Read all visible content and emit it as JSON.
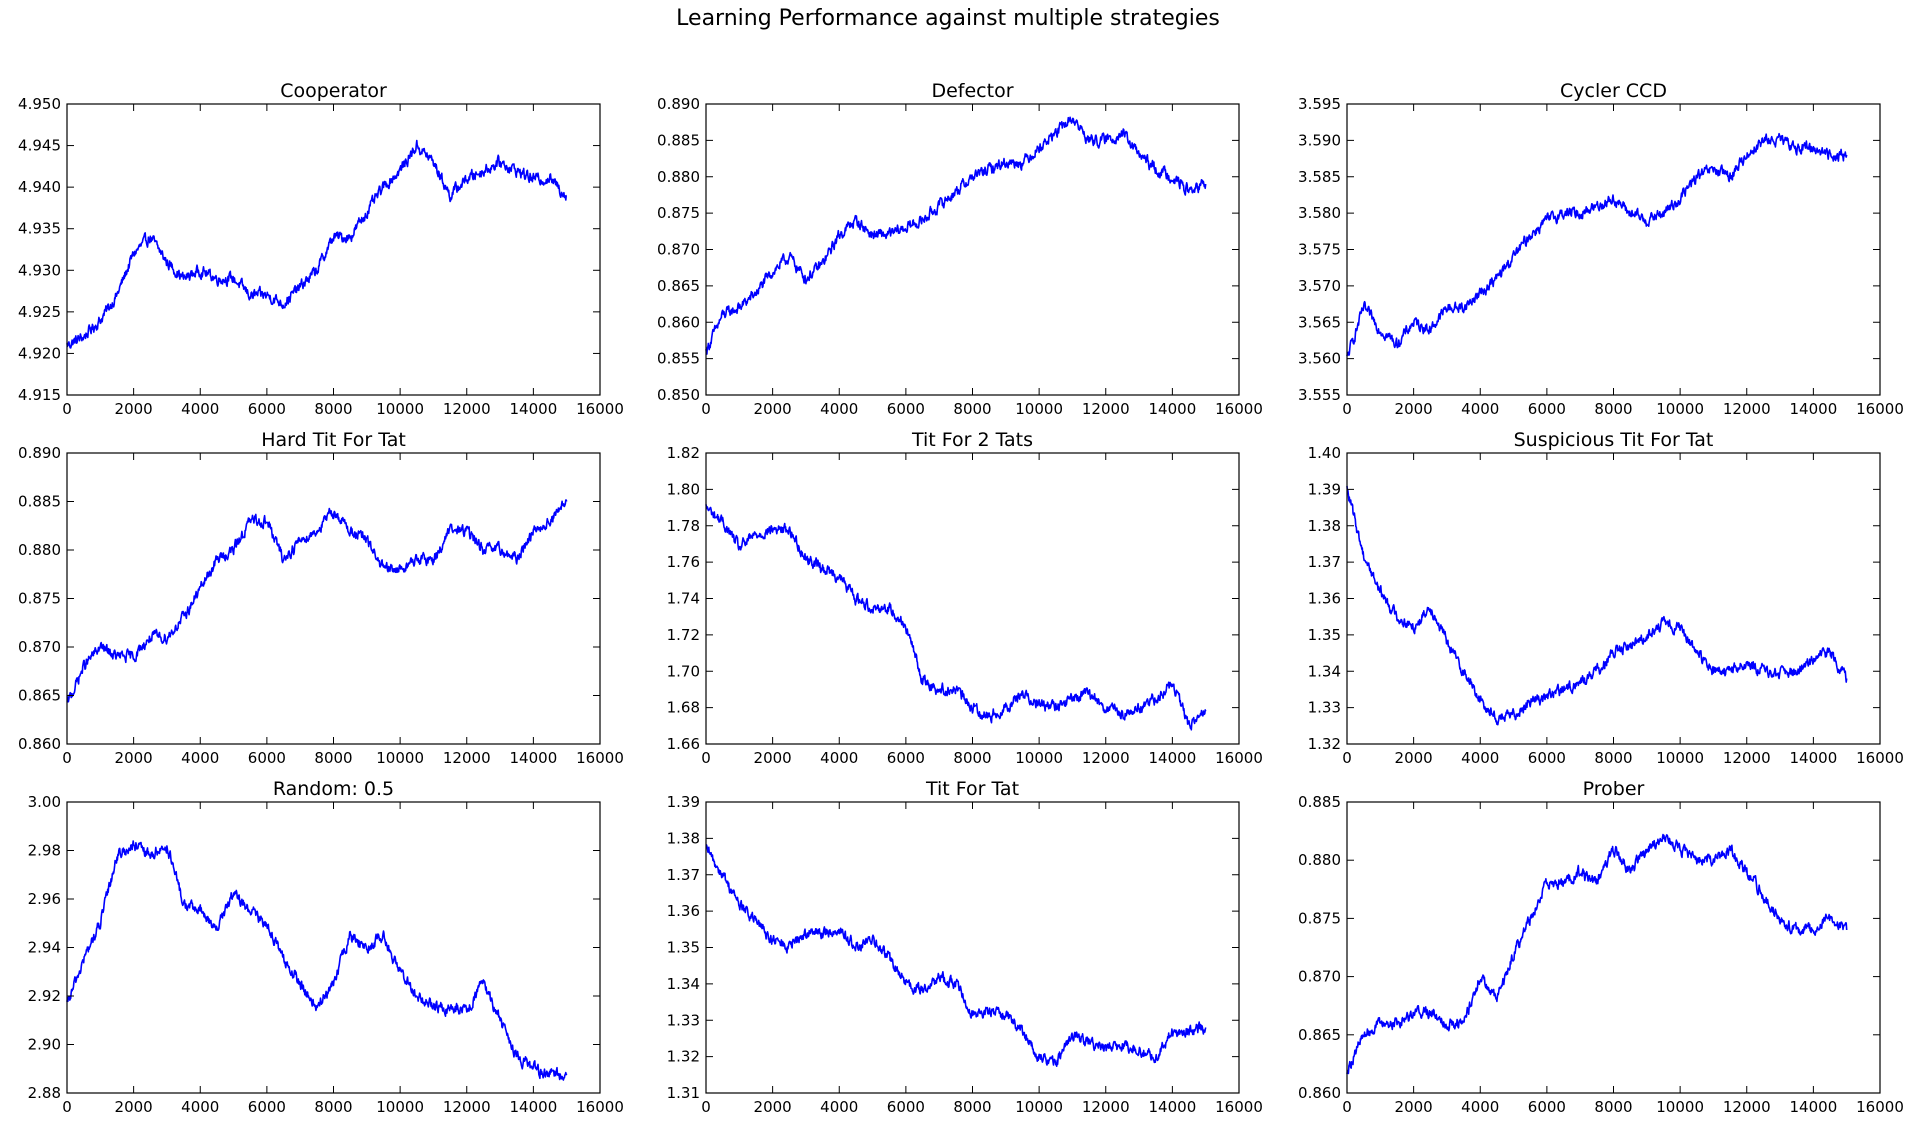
{
  "suptitle": "Learning Performance against multiple strategies",
  "style": {
    "line_color": "#0000ff"
  },
  "chart_data": [
    {
      "type": "line",
      "title": "Cooperator",
      "xlim": [
        0,
        16000
      ],
      "ylim": [
        4.915,
        4.95
      ],
      "xticks": [
        "0",
        "2000",
        "4000",
        "6000",
        "8000",
        "10000",
        "12000",
        "14000",
        "16000"
      ],
      "yticks": [
        "4.915",
        "4.920",
        "4.925",
        "4.930",
        "4.935",
        "4.940",
        "4.945",
        "4.950"
      ],
      "series": [
        {
          "x": [
            0,
            500,
            1000,
            1500,
            2000,
            2500,
            3000,
            3500,
            4000,
            4500,
            5000,
            5500,
            6000,
            6500,
            7000,
            7500,
            8000,
            8500,
            9000,
            9500,
            10000,
            10500,
            11000,
            11500,
            12000,
            12500,
            13000,
            13500,
            14000,
            14500,
            15000
          ],
          "y": [
            4.921,
            4.922,
            4.924,
            4.927,
            4.932,
            4.934,
            4.931,
            4.929,
            4.93,
            4.929,
            4.929,
            4.927,
            4.927,
            4.926,
            4.928,
            4.93,
            4.934,
            4.934,
            4.937,
            4.94,
            4.942,
            4.945,
            4.943,
            4.939,
            4.941,
            4.942,
            4.943,
            4.942,
            4.941,
            4.941,
            4.939
          ]
        }
      ]
    },
    {
      "type": "line",
      "title": "Defector",
      "xlim": [
        0,
        16000
      ],
      "ylim": [
        0.85,
        0.89
      ],
      "xticks": [
        "0",
        "2000",
        "4000",
        "6000",
        "8000",
        "10000",
        "12000",
        "14000",
        "16000"
      ],
      "yticks": [
        "0.850",
        "0.855",
        "0.860",
        "0.865",
        "0.870",
        "0.875",
        "0.880",
        "0.885",
        "0.890"
      ],
      "series": [
        {
          "x": [
            0,
            500,
            1000,
            1500,
            2000,
            2500,
            3000,
            3500,
            4000,
            4500,
            5000,
            5500,
            6000,
            6500,
            7000,
            7500,
            8000,
            8500,
            9000,
            9500,
            10000,
            10500,
            11000,
            11500,
            12000,
            12500,
            13000,
            13500,
            14000,
            14500,
            15000
          ],
          "y": [
            0.856,
            0.861,
            0.862,
            0.864,
            0.867,
            0.869,
            0.866,
            0.868,
            0.872,
            0.874,
            0.872,
            0.872,
            0.873,
            0.874,
            0.876,
            0.878,
            0.88,
            0.881,
            0.882,
            0.882,
            0.884,
            0.886,
            0.888,
            0.885,
            0.885,
            0.886,
            0.883,
            0.881,
            0.88,
            0.878,
            0.879
          ]
        }
      ]
    },
    {
      "type": "line",
      "title": "Cycler CCD",
      "xlim": [
        0,
        16000
      ],
      "ylim": [
        3.555,
        3.595
      ],
      "xticks": [
        "0",
        "2000",
        "4000",
        "6000",
        "8000",
        "10000",
        "12000",
        "14000",
        "16000"
      ],
      "yticks": [
        "3.555",
        "3.560",
        "3.565",
        "3.570",
        "3.575",
        "3.580",
        "3.585",
        "3.590",
        "3.595"
      ],
      "series": [
        {
          "x": [
            0,
            500,
            1000,
            1500,
            2000,
            2500,
            3000,
            3500,
            4000,
            4500,
            5000,
            5500,
            6000,
            6500,
            7000,
            7500,
            8000,
            8500,
            9000,
            9500,
            10000,
            10500,
            11000,
            11500,
            12000,
            12500,
            13000,
            13500,
            14000,
            14500,
            15000
          ],
          "y": [
            3.56,
            3.567,
            3.564,
            3.562,
            3.565,
            3.564,
            3.567,
            3.567,
            3.569,
            3.571,
            3.574,
            3.577,
            3.579,
            3.58,
            3.58,
            3.581,
            3.582,
            3.58,
            3.579,
            3.58,
            3.582,
            3.585,
            3.586,
            3.585,
            3.588,
            3.59,
            3.59,
            3.589,
            3.589,
            3.588,
            3.588
          ]
        }
      ]
    },
    {
      "type": "line",
      "title": "Hard Tit For Tat",
      "xlim": [
        0,
        16000
      ],
      "ylim": [
        0.86,
        0.89
      ],
      "xticks": [
        "0",
        "2000",
        "4000",
        "6000",
        "8000",
        "10000",
        "12000",
        "14000",
        "16000"
      ],
      "yticks": [
        "0.860",
        "0.865",
        "0.870",
        "0.875",
        "0.880",
        "0.885",
        "0.890"
      ],
      "series": [
        {
          "x": [
            0,
            500,
            1000,
            1500,
            2000,
            2500,
            3000,
            3500,
            4000,
            4500,
            5000,
            5500,
            6000,
            6500,
            7000,
            7500,
            8000,
            8500,
            9000,
            9500,
            10000,
            10500,
            11000,
            11500,
            12000,
            12500,
            13000,
            13500,
            14000,
            14500,
            15000
          ],
          "y": [
            0.864,
            0.868,
            0.87,
            0.869,
            0.869,
            0.871,
            0.871,
            0.873,
            0.876,
            0.879,
            0.88,
            0.883,
            0.883,
            0.879,
            0.881,
            0.882,
            0.884,
            0.882,
            0.881,
            0.878,
            0.878,
            0.879,
            0.879,
            0.882,
            0.882,
            0.88,
            0.88,
            0.879,
            0.882,
            0.883,
            0.885
          ]
        }
      ]
    },
    {
      "type": "line",
      "title": "Tit For 2 Tats",
      "xlim": [
        0,
        16000
      ],
      "ylim": [
        1.66,
        1.82
      ],
      "xticks": [
        "0",
        "2000",
        "4000",
        "6000",
        "8000",
        "10000",
        "12000",
        "14000",
        "16000"
      ],
      "yticks": [
        "1.66",
        "1.68",
        "1.70",
        "1.72",
        "1.74",
        "1.76",
        "1.78",
        "1.80",
        "1.82"
      ],
      "series": [
        {
          "x": [
            0,
            500,
            1000,
            1500,
            2000,
            2500,
            3000,
            3500,
            4000,
            4500,
            5000,
            5500,
            6000,
            6500,
            7000,
            7500,
            8000,
            8500,
            9000,
            9500,
            10000,
            10500,
            11000,
            11500,
            12000,
            12500,
            13000,
            13500,
            14000,
            14500,
            15000
          ],
          "y": [
            1.79,
            1.782,
            1.768,
            1.775,
            1.778,
            1.778,
            1.762,
            1.757,
            1.752,
            1.74,
            1.735,
            1.735,
            1.725,
            1.695,
            1.69,
            1.69,
            1.68,
            1.675,
            1.68,
            1.688,
            1.682,
            1.68,
            1.685,
            1.688,
            1.68,
            1.676,
            1.68,
            1.685,
            1.693,
            1.67,
            1.678
          ]
        }
      ]
    },
    {
      "type": "line",
      "title": "Suspicious Tit For Tat",
      "xlim": [
        0,
        16000
      ],
      "ylim": [
        1.32,
        1.4
      ],
      "xticks": [
        "0",
        "2000",
        "4000",
        "6000",
        "8000",
        "10000",
        "12000",
        "14000",
        "16000"
      ],
      "yticks": [
        "1.32",
        "1.33",
        "1.34",
        "1.35",
        "1.36",
        "1.37",
        "1.38",
        "1.39",
        "1.40"
      ],
      "series": [
        {
          "x": [
            0,
            500,
            1000,
            1500,
            2000,
            2500,
            3000,
            3500,
            4000,
            4500,
            5000,
            5500,
            6000,
            6500,
            7000,
            7500,
            8000,
            8500,
            9000,
            9500,
            10000,
            10500,
            11000,
            11500,
            12000,
            12500,
            13000,
            13500,
            14000,
            14500,
            15000
          ],
          "y": [
            1.39,
            1.372,
            1.362,
            1.355,
            1.352,
            1.358,
            1.348,
            1.34,
            1.332,
            1.327,
            1.328,
            1.332,
            1.333,
            1.335,
            1.337,
            1.34,
            1.345,
            1.347,
            1.35,
            1.353,
            1.352,
            1.345,
            1.34,
            1.34,
            1.342,
            1.34,
            1.339,
            1.34,
            1.343,
            1.345,
            1.338
          ]
        }
      ]
    },
    {
      "type": "line",
      "title": "Random: 0.5",
      "xlim": [
        0,
        16000
      ],
      "ylim": [
        2.88,
        3.0
      ],
      "xticks": [
        "0",
        "2000",
        "4000",
        "6000",
        "8000",
        "10000",
        "12000",
        "14000",
        "16000"
      ],
      "yticks": [
        "2.88",
        "2.90",
        "2.92",
        "2.94",
        "2.96",
        "2.98",
        "3.00"
      ],
      "series": [
        {
          "x": [
            0,
            500,
            1000,
            1500,
            2000,
            2500,
            3000,
            3500,
            4000,
            4500,
            5000,
            5500,
            6000,
            6500,
            7000,
            7500,
            8000,
            8500,
            9000,
            9500,
            10000,
            10500,
            11000,
            11500,
            12000,
            12500,
            13000,
            13500,
            14000,
            14500,
            15000
          ],
          "y": [
            2.916,
            2.935,
            2.95,
            2.978,
            2.982,
            2.978,
            2.982,
            2.958,
            2.955,
            2.948,
            2.962,
            2.955,
            2.95,
            2.935,
            2.925,
            2.915,
            2.925,
            2.945,
            2.94,
            2.945,
            2.93,
            2.92,
            2.915,
            2.915,
            2.915,
            2.925,
            2.91,
            2.895,
            2.89,
            2.888,
            2.888
          ]
        }
      ]
    },
    {
      "type": "line",
      "title": "Tit For Tat",
      "xlim": [
        0,
        16000
      ],
      "ylim": [
        1.31,
        1.39
      ],
      "xticks": [
        "0",
        "2000",
        "4000",
        "6000",
        "8000",
        "10000",
        "12000",
        "14000",
        "16000"
      ],
      "yticks": [
        "1.31",
        "1.32",
        "1.33",
        "1.34",
        "1.35",
        "1.36",
        "1.37",
        "1.38",
        "1.39"
      ],
      "series": [
        {
          "x": [
            0,
            500,
            1000,
            1500,
            2000,
            2500,
            3000,
            3500,
            4000,
            4500,
            5000,
            5500,
            6000,
            6500,
            7000,
            7500,
            8000,
            8500,
            9000,
            9500,
            10000,
            10500,
            11000,
            11500,
            12000,
            12500,
            13000,
            13500,
            14000,
            14500,
            15000
          ],
          "y": [
            1.377,
            1.37,
            1.362,
            1.357,
            1.352,
            1.35,
            1.354,
            1.354,
            1.355,
            1.35,
            1.352,
            1.347,
            1.34,
            1.338,
            1.342,
            1.34,
            1.332,
            1.332,
            1.332,
            1.327,
            1.32,
            1.318,
            1.326,
            1.324,
            1.322,
            1.323,
            1.322,
            1.32,
            1.327,
            1.327,
            1.328
          ]
        }
      ]
    },
    {
      "type": "line",
      "title": "Prober",
      "xlim": [
        0,
        16000
      ],
      "ylim": [
        0.86,
        0.885
      ],
      "xticks": [
        "0",
        "2000",
        "4000",
        "6000",
        "8000",
        "10000",
        "12000",
        "14000",
        "16000"
      ],
      "yticks": [
        "0.860",
        "0.865",
        "0.870",
        "0.875",
        "0.880",
        "0.885"
      ],
      "series": [
        {
          "x": [
            0,
            500,
            1000,
            1500,
            2000,
            2500,
            3000,
            3500,
            4000,
            4500,
            5000,
            5500,
            6000,
            6500,
            7000,
            7500,
            8000,
            8500,
            9000,
            9500,
            10000,
            10500,
            11000,
            11500,
            12000,
            12500,
            13000,
            13500,
            14000,
            14500,
            15000
          ],
          "y": [
            0.862,
            0.865,
            0.866,
            0.866,
            0.867,
            0.867,
            0.866,
            0.866,
            0.87,
            0.868,
            0.872,
            0.875,
            0.878,
            0.878,
            0.879,
            0.878,
            0.881,
            0.879,
            0.881,
            0.882,
            0.881,
            0.88,
            0.88,
            0.881,
            0.879,
            0.877,
            0.875,
            0.874,
            0.874,
            0.875,
            0.874
          ]
        }
      ]
    }
  ]
}
